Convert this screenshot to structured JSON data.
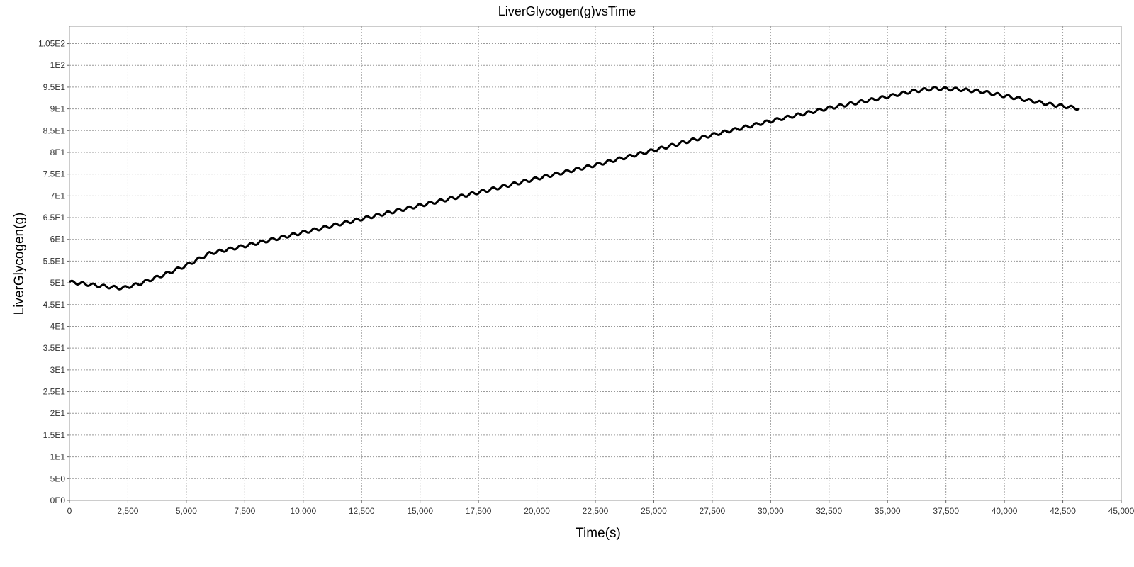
{
  "chart_data": {
    "type": "line",
    "title": "LiverGlycogen(g)vsTime",
    "xlabel": "Time(s)",
    "ylabel": "LiverGlycogen(g)",
    "xlim": [
      0,
      45000
    ],
    "ylim": [
      0,
      109
    ],
    "grid": true,
    "legend": "none",
    "x_ticks": [
      {
        "value": 0,
        "label": "0"
      },
      {
        "value": 2500,
        "label": "2,500"
      },
      {
        "value": 5000,
        "label": "5,000"
      },
      {
        "value": 7500,
        "label": "7,500"
      },
      {
        "value": 10000,
        "label": "10,000"
      },
      {
        "value": 12500,
        "label": "12,500"
      },
      {
        "value": 15000,
        "label": "15,000"
      },
      {
        "value": 17500,
        "label": "17,500"
      },
      {
        "value": 20000,
        "label": "20,000"
      },
      {
        "value": 22500,
        "label": "22,500"
      },
      {
        "value": 25000,
        "label": "25,000"
      },
      {
        "value": 27500,
        "label": "27,500"
      },
      {
        "value": 30000,
        "label": "30,000"
      },
      {
        "value": 32500,
        "label": "32,500"
      },
      {
        "value": 35000,
        "label": "35,000"
      },
      {
        "value": 37500,
        "label": "37,500"
      },
      {
        "value": 40000,
        "label": "40,000"
      },
      {
        "value": 42500,
        "label": "42,500"
      },
      {
        "value": 45000,
        "label": "45,000"
      }
    ],
    "y_ticks": [
      {
        "value": 0,
        "label": "0E0"
      },
      {
        "value": 5,
        "label": "5E0"
      },
      {
        "value": 10,
        "label": "1E1"
      },
      {
        "value": 15,
        "label": "1.5E1"
      },
      {
        "value": 20,
        "label": "2E1"
      },
      {
        "value": 25,
        "label": "2.5E1"
      },
      {
        "value": 30,
        "label": "3E1"
      },
      {
        "value": 35,
        "label": "3.5E1"
      },
      {
        "value": 40,
        "label": "4E1"
      },
      {
        "value": 45,
        "label": "4.5E1"
      },
      {
        "value": 50,
        "label": "5E1"
      },
      {
        "value": 55,
        "label": "5.5E1"
      },
      {
        "value": 60,
        "label": "6E1"
      },
      {
        "value": 65,
        "label": "6.5E1"
      },
      {
        "value": 70,
        "label": "7E1"
      },
      {
        "value": 75,
        "label": "7.5E1"
      },
      {
        "value": 80,
        "label": "8E1"
      },
      {
        "value": 85,
        "label": "8.5E1"
      },
      {
        "value": 90,
        "label": "9E1"
      },
      {
        "value": 95,
        "label": "9.5E1"
      },
      {
        "value": 100,
        "label": "1E2"
      },
      {
        "value": 105,
        "label": "1.05E2"
      }
    ],
    "series": [
      {
        "color": "#000000",
        "x": [
          0,
          1000,
          2000,
          2300,
          3000,
          4000,
          5000,
          6000,
          7500,
          10000,
          12500,
          15000,
          17500,
          20000,
          22500,
          25000,
          27500,
          30000,
          32500,
          35000,
          36000,
          37000,
          38000,
          39000,
          40000,
          41000,
          42000,
          43200
        ],
        "y": [
          50.2,
          49.5,
          48.9,
          48.8,
          49.8,
          51.8,
          54.0,
          56.8,
          58.5,
          61.6,
          64.7,
          67.8,
          70.8,
          74.0,
          77.1,
          80.5,
          84.0,
          87.2,
          90.2,
          92.8,
          94.0,
          94.7,
          94.5,
          94.0,
          93.0,
          92.0,
          91.0,
          90.1
        ],
        "oscillation": {
          "amplitude": 0.35,
          "period_s": 450
        }
      }
    ]
  }
}
